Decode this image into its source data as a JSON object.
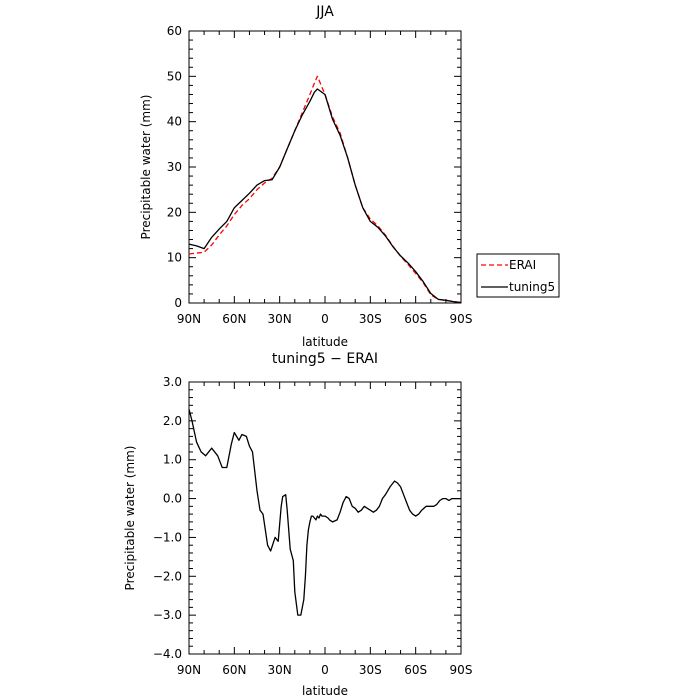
{
  "chart_data": [
    {
      "type": "line",
      "title": "JJA",
      "xlabel": "latitude",
      "ylabel": "Precipitable water (mm)",
      "x_tick_labels": [
        "90N",
        "60N",
        "30N",
        "0",
        "30S",
        "60S",
        "90S"
      ],
      "x_tick_values": [
        90,
        60,
        30,
        0,
        -30,
        -60,
        -90
      ],
      "xlim": [
        90,
        -90
      ],
      "ylim": [
        0,
        60
      ],
      "y_tick_labels": [
        "0",
        "10",
        "20",
        "30",
        "40",
        "50",
        "60"
      ],
      "y_tick_values": [
        0,
        10,
        20,
        30,
        40,
        50,
        60
      ],
      "grid": false,
      "legend_position": "right",
      "series": [
        {
          "name": "ERAI",
          "color": "#ff0000",
          "dash": "dashed",
          "x": [
            90,
            85,
            80,
            75,
            70,
            65,
            60,
            55,
            50,
            45,
            40,
            35,
            30,
            25,
            20,
            15,
            10,
            7,
            5,
            0,
            -5,
            -10,
            -15,
            -20,
            -25,
            -30,
            -35,
            -40,
            -45,
            -50,
            -55,
            -60,
            -65,
            -70,
            -75,
            -80,
            -85,
            -90
          ],
          "y": [
            10.8,
            11.0,
            11.2,
            12.8,
            15.0,
            17.0,
            19.5,
            21.5,
            23.0,
            25.0,
            26.5,
            27.5,
            30.0,
            34.0,
            38.0,
            42.0,
            46.0,
            48.5,
            50.0,
            46.0,
            41.0,
            37.5,
            32.0,
            26.0,
            21.0,
            18.5,
            17.0,
            15.0,
            12.5,
            10.3,
            8.5,
            6.5,
            4.5,
            1.8,
            0.8,
            0.6,
            0.3,
            0.1
          ]
        },
        {
          "name": "tuning5",
          "color": "#000000",
          "dash": "solid",
          "x": [
            90,
            85,
            80,
            75,
            70,
            65,
            60,
            55,
            50,
            45,
            40,
            35,
            30,
            25,
            20,
            15,
            10,
            7,
            5,
            0,
            -5,
            -10,
            -15,
            -20,
            -25,
            -30,
            -35,
            -40,
            -45,
            -50,
            -55,
            -60,
            -65,
            -70,
            -75,
            -80,
            -85,
            -90
          ],
          "y": [
            13.0,
            12.6,
            12.0,
            14.5,
            16.3,
            18.0,
            21.0,
            22.6,
            24.2,
            26.0,
            27.0,
            27.2,
            30.0,
            34.0,
            38.0,
            41.5,
            44.5,
            46.5,
            47.2,
            46.0,
            40.5,
            37.0,
            32.0,
            26.0,
            21.0,
            18.0,
            16.7,
            14.8,
            12.4,
            10.4,
            8.8,
            6.9,
            4.7,
            2.1,
            0.8,
            0.6,
            0.3,
            0.1
          ]
        }
      ]
    },
    {
      "type": "line",
      "title": "tuning5 − ERAI",
      "xlabel": "latitude",
      "ylabel": "Precipitable water (mm)",
      "x_tick_labels": [
        "90N",
        "60N",
        "30N",
        "0",
        "30S",
        "60S",
        "90S"
      ],
      "x_tick_values": [
        90,
        60,
        30,
        0,
        -30,
        -60,
        -90
      ],
      "xlim": [
        90,
        -90
      ],
      "ylim": [
        -4.0,
        3.0
      ],
      "y_tick_labels": [
        "−4.0",
        "−3.0",
        "−2.0",
        "−1.0",
        "0.0",
        "1.0",
        "2.0",
        "3.0"
      ],
      "y_tick_values": [
        -4,
        -3,
        -2,
        -1,
        0,
        1,
        2,
        3
      ],
      "grid": false,
      "series": [
        {
          "color": "#000000",
          "dash": "solid",
          "x": [
            90,
            88,
            85,
            82,
            79,
            75,
            71,
            68,
            65,
            62,
            60,
            57,
            55,
            52,
            50,
            48,
            45,
            43,
            41,
            38,
            36,
            33,
            31,
            29,
            28,
            26,
            25,
            23,
            21,
            20,
            18,
            16,
            14,
            13,
            12,
            11,
            10,
            9,
            8,
            7,
            6,
            5,
            4,
            3,
            2,
            0,
            -2,
            -3,
            -5,
            -8,
            -10,
            -12,
            -14,
            -16,
            -18,
            -20,
            -22,
            -24,
            -26,
            -28,
            -30,
            -32,
            -34,
            -36,
            -38,
            -40,
            -43,
            -46,
            -48,
            -50,
            -52,
            -54,
            -56,
            -58,
            -60,
            -62,
            -64,
            -67,
            -70,
            -72,
            -74,
            -76,
            -78,
            -80,
            -82,
            -84,
            -86,
            -88,
            -90
          ],
          "y": [
            2.3,
            2.0,
            1.45,
            1.2,
            1.1,
            1.3,
            1.1,
            0.8,
            0.8,
            1.4,
            1.7,
            1.5,
            1.65,
            1.6,
            1.35,
            1.2,
            0.2,
            -0.3,
            -0.4,
            -1.2,
            -1.35,
            -1.0,
            -1.1,
            -0.2,
            0.05,
            0.1,
            -0.3,
            -1.3,
            -1.6,
            -2.4,
            -3.0,
            -3.0,
            -2.6,
            -2.0,
            -1.2,
            -0.8,
            -0.6,
            -0.45,
            -0.45,
            -0.5,
            -0.55,
            -0.45,
            -0.5,
            -0.4,
            -0.45,
            -0.45,
            -0.5,
            -0.55,
            -0.6,
            -0.55,
            -0.35,
            -0.1,
            0.05,
            0.0,
            -0.2,
            -0.25,
            -0.35,
            -0.3,
            -0.2,
            -0.25,
            -0.3,
            -0.35,
            -0.3,
            -0.2,
            0.0,
            0.1,
            0.3,
            0.45,
            0.4,
            0.3,
            0.1,
            -0.1,
            -0.3,
            -0.4,
            -0.45,
            -0.4,
            -0.3,
            -0.2,
            -0.2,
            -0.2,
            -0.15,
            -0.05,
            0.0,
            0.0,
            -0.05,
            0.0,
            0.0,
            0.0,
            0.0
          ]
        }
      ]
    }
  ]
}
